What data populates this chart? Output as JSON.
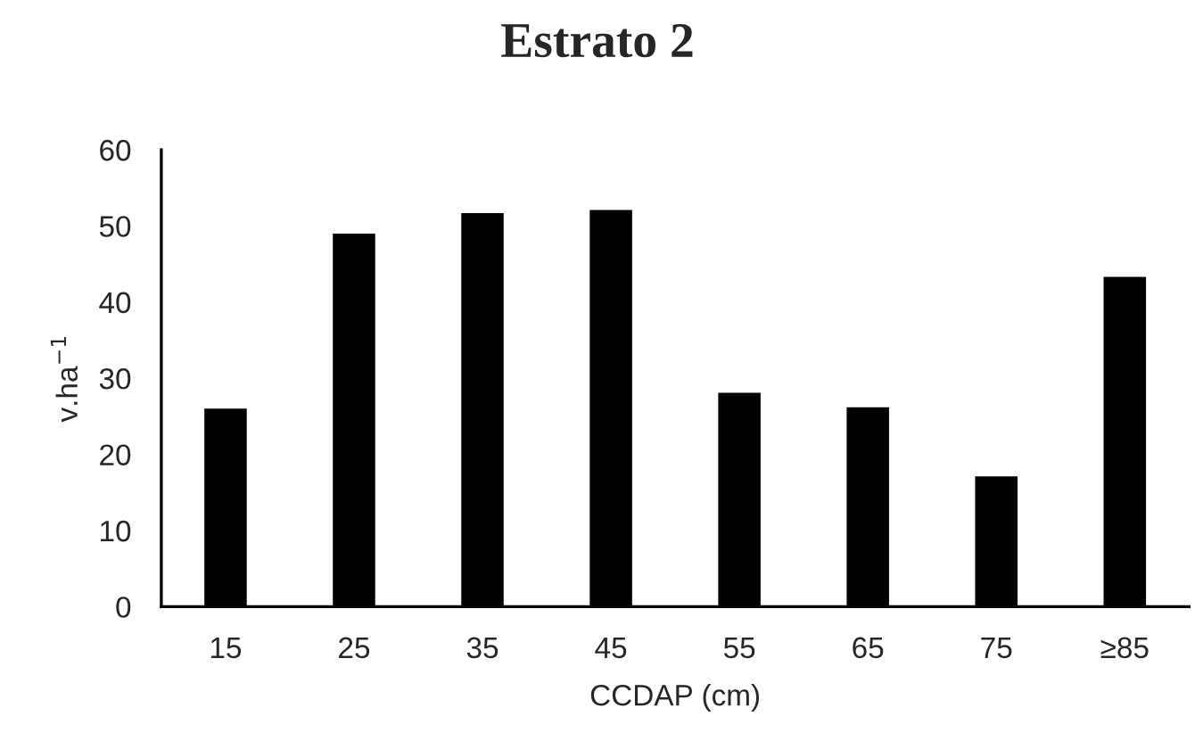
{
  "chart_data": {
    "type": "bar",
    "title": "Estrato 2",
    "xlabel": "CCDAP (cm)",
    "ylabel": "v.ha$^{−1}$",
    "categories": [
      "15",
      "25",
      "35",
      "45",
      "55",
      "65",
      "75",
      "≥85"
    ],
    "values": [
      26,
      49,
      51.7,
      52.1,
      28.1,
      26.2,
      17.1,
      43.3
    ],
    "color": "#000000",
    "ylim": [
      0,
      60
    ],
    "yticks": [
      0,
      10,
      20,
      30,
      40,
      50,
      60
    ],
    "grid": false
  }
}
